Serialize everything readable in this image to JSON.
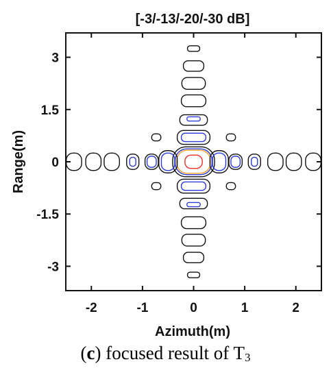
{
  "chart_data": {
    "type": "contour",
    "title": "[-3/-13/-20/-30 dB]",
    "xlabel": "Azimuth(m)",
    "ylabel": "Range(m)",
    "xlim": [
      -2.5,
      2.5
    ],
    "ylim": [
      -3.7,
      3.7
    ],
    "xticks": [
      -2,
      -1,
      0,
      1,
      2
    ],
    "yticks": [
      -3,
      -1.5,
      0,
      1.5,
      3
    ],
    "ytick_labels": [
      "-3",
      "-1.5",
      "0",
      "1.5",
      "3"
    ],
    "levels": [
      {
        "db": -3,
        "color": "#e8322a"
      },
      {
        "db": -13,
        "color": "#f0a020"
      },
      {
        "db": -20,
        "color": "#2a3ad8"
      },
      {
        "db": -30,
        "color": "#111111"
      }
    ],
    "contours": [
      {
        "level": -3,
        "x": 0,
        "y": 0,
        "rx": 0.17,
        "ry": 0.19
      },
      {
        "level": -13,
        "x": 0,
        "y": 0,
        "rx": 0.33,
        "ry": 0.33
      },
      {
        "level": -20,
        "x": 0,
        "y": 0,
        "rx": 0.36,
        "ry": 0.37
      },
      {
        "level": -30,
        "x": 0,
        "y": 0,
        "rx": 0.41,
        "ry": 0.43
      },
      {
        "level": -20,
        "x": -0.5,
        "y": 0,
        "rx": 0.13,
        "ry": 0.25
      },
      {
        "level": -20,
        "x": 0.5,
        "y": 0,
        "rx": 0.13,
        "ry": 0.25
      },
      {
        "level": -30,
        "x": -0.5,
        "y": 0,
        "rx": 0.18,
        "ry": 0.32
      },
      {
        "level": -30,
        "x": 0.5,
        "y": 0,
        "rx": 0.18,
        "ry": 0.32
      },
      {
        "level": -20,
        "x": -0.82,
        "y": 0,
        "rx": 0.09,
        "ry": 0.16
      },
      {
        "level": -20,
        "x": 0.82,
        "y": 0,
        "rx": 0.09,
        "ry": 0.16
      },
      {
        "level": -30,
        "x": -0.82,
        "y": 0,
        "rx": 0.13,
        "ry": 0.22
      },
      {
        "level": -30,
        "x": 0.82,
        "y": 0,
        "rx": 0.13,
        "ry": 0.22
      },
      {
        "level": -20,
        "x": -1.19,
        "y": 0,
        "rx": 0.06,
        "ry": 0.13
      },
      {
        "level": -20,
        "x": 1.19,
        "y": 0,
        "rx": 0.06,
        "ry": 0.13
      },
      {
        "level": -30,
        "x": -1.19,
        "y": 0,
        "rx": 0.12,
        "ry": 0.22
      },
      {
        "level": -30,
        "x": 1.19,
        "y": 0,
        "rx": 0.12,
        "ry": 0.22
      },
      {
        "level": -30,
        "x": -1.6,
        "y": 0,
        "rx": 0.15,
        "ry": 0.25
      },
      {
        "level": -30,
        "x": 1.6,
        "y": 0,
        "rx": 0.15,
        "ry": 0.25
      },
      {
        "level": -30,
        "x": -1.96,
        "y": 0,
        "rx": 0.15,
        "ry": 0.25
      },
      {
        "level": -30,
        "x": 1.96,
        "y": 0,
        "rx": 0.15,
        "ry": 0.25
      },
      {
        "level": -30,
        "x": -2.34,
        "y": 0,
        "rx": 0.15,
        "ry": 0.25
      },
      {
        "level": -30,
        "x": 2.34,
        "y": 0,
        "rx": 0.15,
        "ry": 0.25
      },
      {
        "level": -20,
        "x": 0,
        "y": 0.7,
        "rx": 0.24,
        "ry": 0.12
      },
      {
        "level": -20,
        "x": 0,
        "y": -0.7,
        "rx": 0.24,
        "ry": 0.12
      },
      {
        "level": -30,
        "x": 0,
        "y": 0.7,
        "rx": 0.32,
        "ry": 0.2
      },
      {
        "level": -30,
        "x": 0,
        "y": -0.7,
        "rx": 0.32,
        "ry": 0.2
      },
      {
        "level": -30,
        "x": -0.73,
        "y": 0.7,
        "rx": 0.09,
        "ry": 0.1
      },
      {
        "level": -30,
        "x": 0.73,
        "y": 0.7,
        "rx": 0.09,
        "ry": 0.1
      },
      {
        "level": -30,
        "x": -0.73,
        "y": -0.7,
        "rx": 0.09,
        "ry": 0.1
      },
      {
        "level": -30,
        "x": 0.73,
        "y": -0.7,
        "rx": 0.09,
        "ry": 0.1
      },
      {
        "level": -20,
        "x": 0,
        "y": 1.23,
        "rx": 0.13,
        "ry": 0.06
      },
      {
        "level": -20,
        "x": 0,
        "y": -1.23,
        "rx": 0.13,
        "ry": 0.06
      },
      {
        "level": -30,
        "x": 0,
        "y": 1.2,
        "rx": 0.27,
        "ry": 0.15
      },
      {
        "level": -30,
        "x": 0,
        "y": -1.2,
        "rx": 0.27,
        "ry": 0.15
      },
      {
        "level": -30,
        "x": 0,
        "y": 1.75,
        "rx": 0.24,
        "ry": 0.17
      },
      {
        "level": -30,
        "x": 0,
        "y": -1.75,
        "rx": 0.24,
        "ry": 0.17
      },
      {
        "level": -30,
        "x": 0,
        "y": 2.25,
        "rx": 0.23,
        "ry": 0.17
      },
      {
        "level": -30,
        "x": 0,
        "y": -2.25,
        "rx": 0.23,
        "ry": 0.17
      },
      {
        "level": -30,
        "x": 0,
        "y": 2.75,
        "rx": 0.2,
        "ry": 0.15
      },
      {
        "level": -30,
        "x": 0,
        "y": -2.75,
        "rx": 0.2,
        "ry": 0.15
      },
      {
        "level": -30,
        "x": 0,
        "y": 3.25,
        "rx": 0.12,
        "ry": 0.08
      },
      {
        "level": -30,
        "x": 0,
        "y": -3.25,
        "rx": 0.12,
        "ry": 0.08
      }
    ]
  },
  "caption": {
    "panel_letter": "c",
    "text": " focused result of T",
    "subscript": "3"
  }
}
